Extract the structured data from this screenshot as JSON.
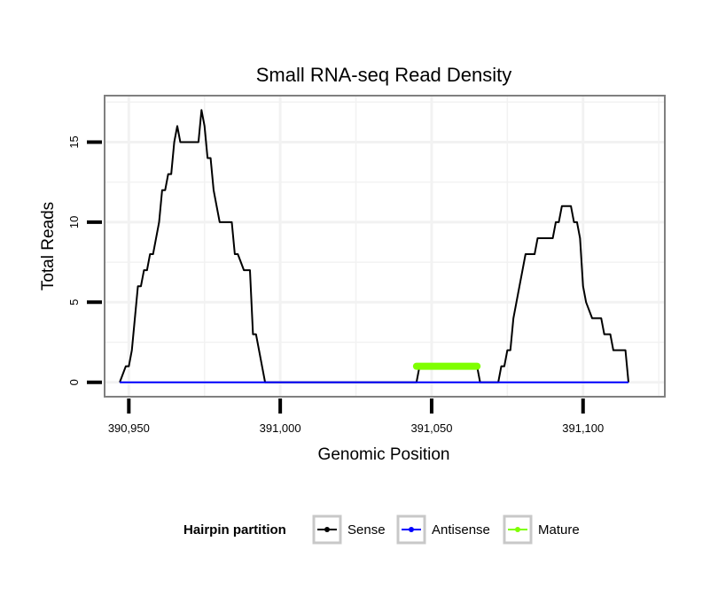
{
  "chart_data": {
    "type": "line",
    "title": "Small RNA-seq Read Density",
    "xlabel": "Genomic Position",
    "ylabel": "Total Reads",
    "xlim": [
      390942,
      391127
    ],
    "ylim": [
      -0.9,
      17.9
    ],
    "x_ticks": [
      390950,
      391000,
      391050,
      391100
    ],
    "x_tick_labels": [
      "390,950",
      "391,000",
      "391,050",
      "391,100"
    ],
    "y_ticks": [
      0,
      5,
      10,
      15
    ],
    "y_tick_labels": [
      "0",
      "5",
      "10",
      "15"
    ],
    "grid": true,
    "legend_position": "bottom",
    "legend_title": "Hairpin partition",
    "series": [
      {
        "name": "Sense",
        "color": "#000000",
        "x": [
          390947,
          390949,
          390950,
          390951,
          390952,
          390953,
          390954,
          390955,
          390956,
          390957,
          390958,
          390960,
          390961,
          390962,
          390963,
          390964,
          390965,
          390966,
          390967,
          390968,
          390970,
          390971,
          390973,
          390974,
          390975,
          390976,
          390977,
          390978,
          390979,
          390980,
          390981,
          390983,
          390984,
          390985,
          390986,
          390988,
          390989,
          390990,
          390991,
          390992,
          390993,
          390994,
          390995,
          390996,
          391045,
          391046,
          391065,
          391066,
          391071,
          391072,
          391073,
          391074,
          391075,
          391076,
          391077,
          391078,
          391079,
          391080,
          391081,
          391083,
          391084,
          391085,
          391086,
          391087,
          391088,
          391089,
          391090,
          391091,
          391092,
          391093,
          391094,
          391095,
          391096,
          391097,
          391098,
          391099,
          391100,
          391101,
          391103,
          391104,
          391105,
          391106,
          391107,
          391108,
          391109,
          391110,
          391111,
          391113,
          391114,
          391115
        ],
        "values": [
          0,
          1,
          1,
          2,
          4,
          6,
          6,
          7,
          7,
          8,
          8,
          10,
          12,
          12,
          13,
          13,
          15,
          16,
          15,
          15,
          15,
          15,
          15,
          17,
          16,
          14,
          14,
          12,
          11,
          10,
          10,
          10,
          10,
          8,
          8,
          7,
          7,
          7,
          3,
          3,
          2,
          1,
          0,
          0,
          0,
          1,
          1,
          0,
          0,
          0,
          1,
          1,
          2,
          2,
          4,
          5,
          6,
          7,
          8,
          8,
          8,
          9,
          9,
          9,
          9,
          9,
          9,
          10,
          10,
          11,
          11,
          11,
          11,
          10,
          10,
          9,
          6,
          5,
          4,
          4,
          4,
          4,
          3,
          3,
          3,
          2,
          2,
          2,
          2,
          0
        ]
      },
      {
        "name": "Antisense",
        "color": "#0000ff",
        "x": [
          390947,
          391115
        ],
        "values": [
          0,
          0
        ]
      },
      {
        "name": "Mature",
        "color": "#7fff00",
        "x": [
          391045,
          391065
        ],
        "values": [
          1,
          1
        ]
      }
    ]
  }
}
